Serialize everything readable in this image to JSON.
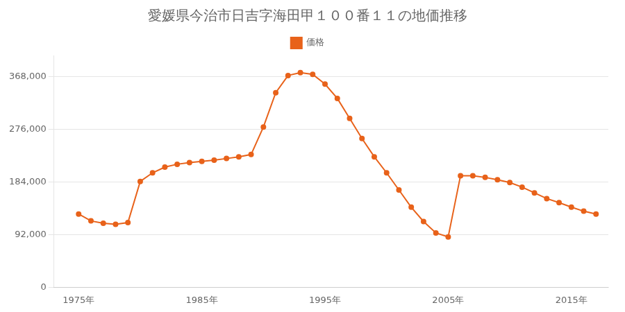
{
  "chart_data": {
    "type": "line",
    "title": "愛媛県今治市日吉字海田甲１００番１１の地価推移",
    "x": [
      1975,
      1976,
      1977,
      1978,
      1979,
      1980,
      1981,
      1982,
      1983,
      1984,
      1985,
      1986,
      1987,
      1988,
      1989,
      1990,
      1991,
      1992,
      1993,
      1994,
      1995,
      1996,
      1997,
      1998,
      1999,
      2000,
      2001,
      2002,
      2003,
      2004,
      2005,
      2006,
      2007,
      2008,
      2009,
      2010,
      2011,
      2012,
      2013,
      2014,
      2015,
      2016,
      2017
    ],
    "series": [
      {
        "name": "価格",
        "color": "#e8621a",
        "marker": "o",
        "values": [
          128000,
          116000,
          112000,
          110000,
          113000,
          185000,
          200000,
          210000,
          215000,
          218000,
          220000,
          222000,
          225000,
          228000,
          232000,
          280000,
          340000,
          370000,
          375000,
          372000,
          355000,
          330000,
          295000,
          260000,
          228000,
          200000,
          170000,
          140000,
          115000,
          95000,
          88000,
          195000,
          195000,
          192000,
          188000,
          183000,
          175000,
          165000,
          155000,
          148000,
          140000,
          133000,
          128000
        ]
      }
    ],
    "xlim": [
      1973,
      2018
    ],
    "xticks": [
      {
        "value": 1975,
        "label": "1975年"
      },
      {
        "value": 1985,
        "label": "1985年"
      },
      {
        "value": 1995,
        "label": "1995年"
      },
      {
        "value": 2005,
        "label": "2005年"
      },
      {
        "value": 2015,
        "label": "2015年"
      }
    ],
    "ylim": [
      0,
      405000
    ],
    "yticks": [
      0,
      {
        "value": 92000,
        "label": "92,000"
      },
      {
        "value": 184000,
        "label": "184,000"
      },
      {
        "value": 276000,
        "label": "276,000"
      },
      {
        "value": 368000,
        "label": "368,000"
      }
    ],
    "grid": "y",
    "legend": "top"
  }
}
